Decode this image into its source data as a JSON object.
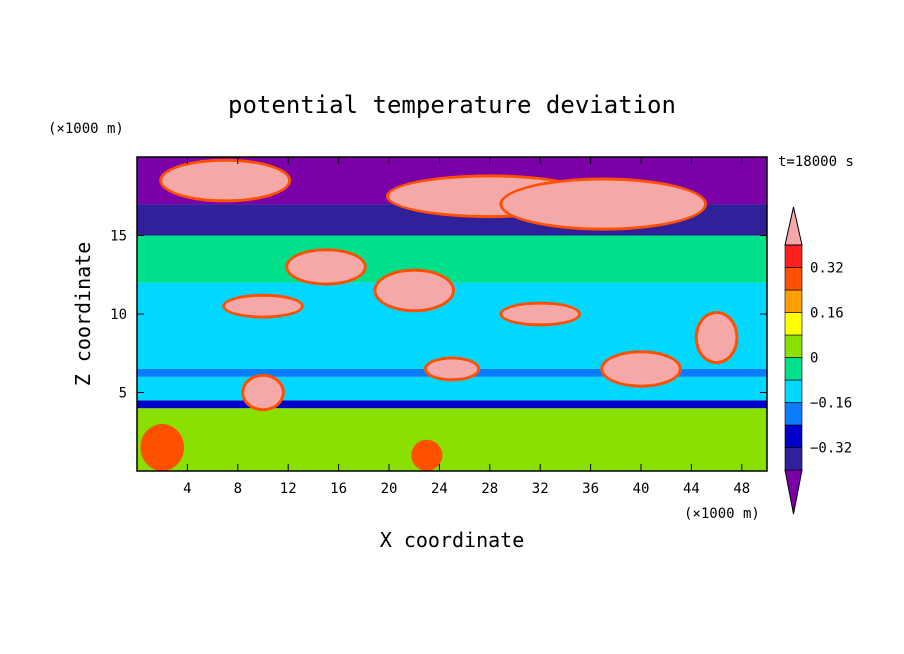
{
  "chart_data": {
    "type": "heatmap",
    "title": "potential temperature deviation",
    "xlabel": "X coordinate",
    "ylabel": "Z coordinate",
    "x_unit": "(×1000 m)",
    "y_unit": "(×1000 m)",
    "time_label": "t=18000 s",
    "xlim": [
      0,
      50
    ],
    "ylim": [
      0,
      20
    ],
    "x_ticks": [
      4,
      8,
      12,
      16,
      20,
      24,
      28,
      32,
      36,
      40,
      44,
      48
    ],
    "y_ticks": [
      5,
      10,
      15
    ],
    "colorbar": {
      "levels": [
        -0.4,
        -0.32,
        -0.24,
        -0.16,
        -0.08,
        0,
        0.08,
        0.16,
        0.24,
        0.32,
        0.4
      ],
      "labels": [
        -0.32,
        -0.16,
        0,
        0.16,
        0.32
      ],
      "colors": [
        "#7b00a8",
        "#30209a",
        "#0000c8",
        "#0a7cff",
        "#00d8ff",
        "#00e08a",
        "#8ae000",
        "#ffff00",
        "#ffa000",
        "#ff5000",
        "#ff2020",
        "#f4a8a8"
      ],
      "extend": "both"
    },
    "layers": [
      {
        "z": [
          0,
          1.5
        ],
        "value": 0.05
      },
      {
        "z": [
          1.5,
          4
        ],
        "value": 0.0
      },
      {
        "z": [
          4,
          4.5
        ],
        "value": -0.3
      },
      {
        "z": [
          4.5,
          6
        ],
        "value": -0.1
      },
      {
        "z": [
          6,
          6.5
        ],
        "value": -0.2
      },
      {
        "z": [
          6.5,
          12
        ],
        "value": -0.1
      },
      {
        "z": [
          12,
          15
        ],
        "value": -0.05
      },
      {
        "z": [
          15,
          17
        ],
        "value": -0.36
      },
      {
        "z": [
          17,
          20
        ],
        "value": -0.44
      }
    ],
    "features": [
      {
        "x": 2,
        "z": 1.5,
        "rx": 1.5,
        "rz": 1.3,
        "value": 0.3
      },
      {
        "x": 23,
        "z": 1,
        "rx": 1,
        "rz": 0.8,
        "value": 0.3
      },
      {
        "x": 10,
        "z": 5,
        "rx": 1.5,
        "rz": 1,
        "value": 0.45
      },
      {
        "x": 7,
        "z": 18.5,
        "rx": 5,
        "rz": 1.2,
        "value": 0.45
      },
      {
        "x": 28,
        "z": 17.5,
        "rx": 8,
        "rz": 1.2,
        "value": 0.45
      },
      {
        "x": 37,
        "z": 17,
        "rx": 8,
        "rz": 1.5,
        "value": 0.45
      },
      {
        "x": 15,
        "z": 13,
        "rx": 3,
        "rz": 1,
        "value": 0.45
      },
      {
        "x": 22,
        "z": 11.5,
        "rx": 3,
        "rz": 1.2,
        "value": 0.45
      },
      {
        "x": 10,
        "z": 10.5,
        "rx": 3,
        "rz": 0.6,
        "value": 0.45
      },
      {
        "x": 32,
        "z": 10,
        "rx": 3,
        "rz": 0.6,
        "value": 0.45
      },
      {
        "x": 40,
        "z": 6.5,
        "rx": 3,
        "rz": 1,
        "value": 0.45
      },
      {
        "x": 46,
        "z": 8.5,
        "rx": 1.5,
        "rz": 1.5,
        "value": 0.45
      },
      {
        "x": 25,
        "z": 6.5,
        "rx": 2,
        "rz": 0.6,
        "value": 0.45
      }
    ]
  }
}
